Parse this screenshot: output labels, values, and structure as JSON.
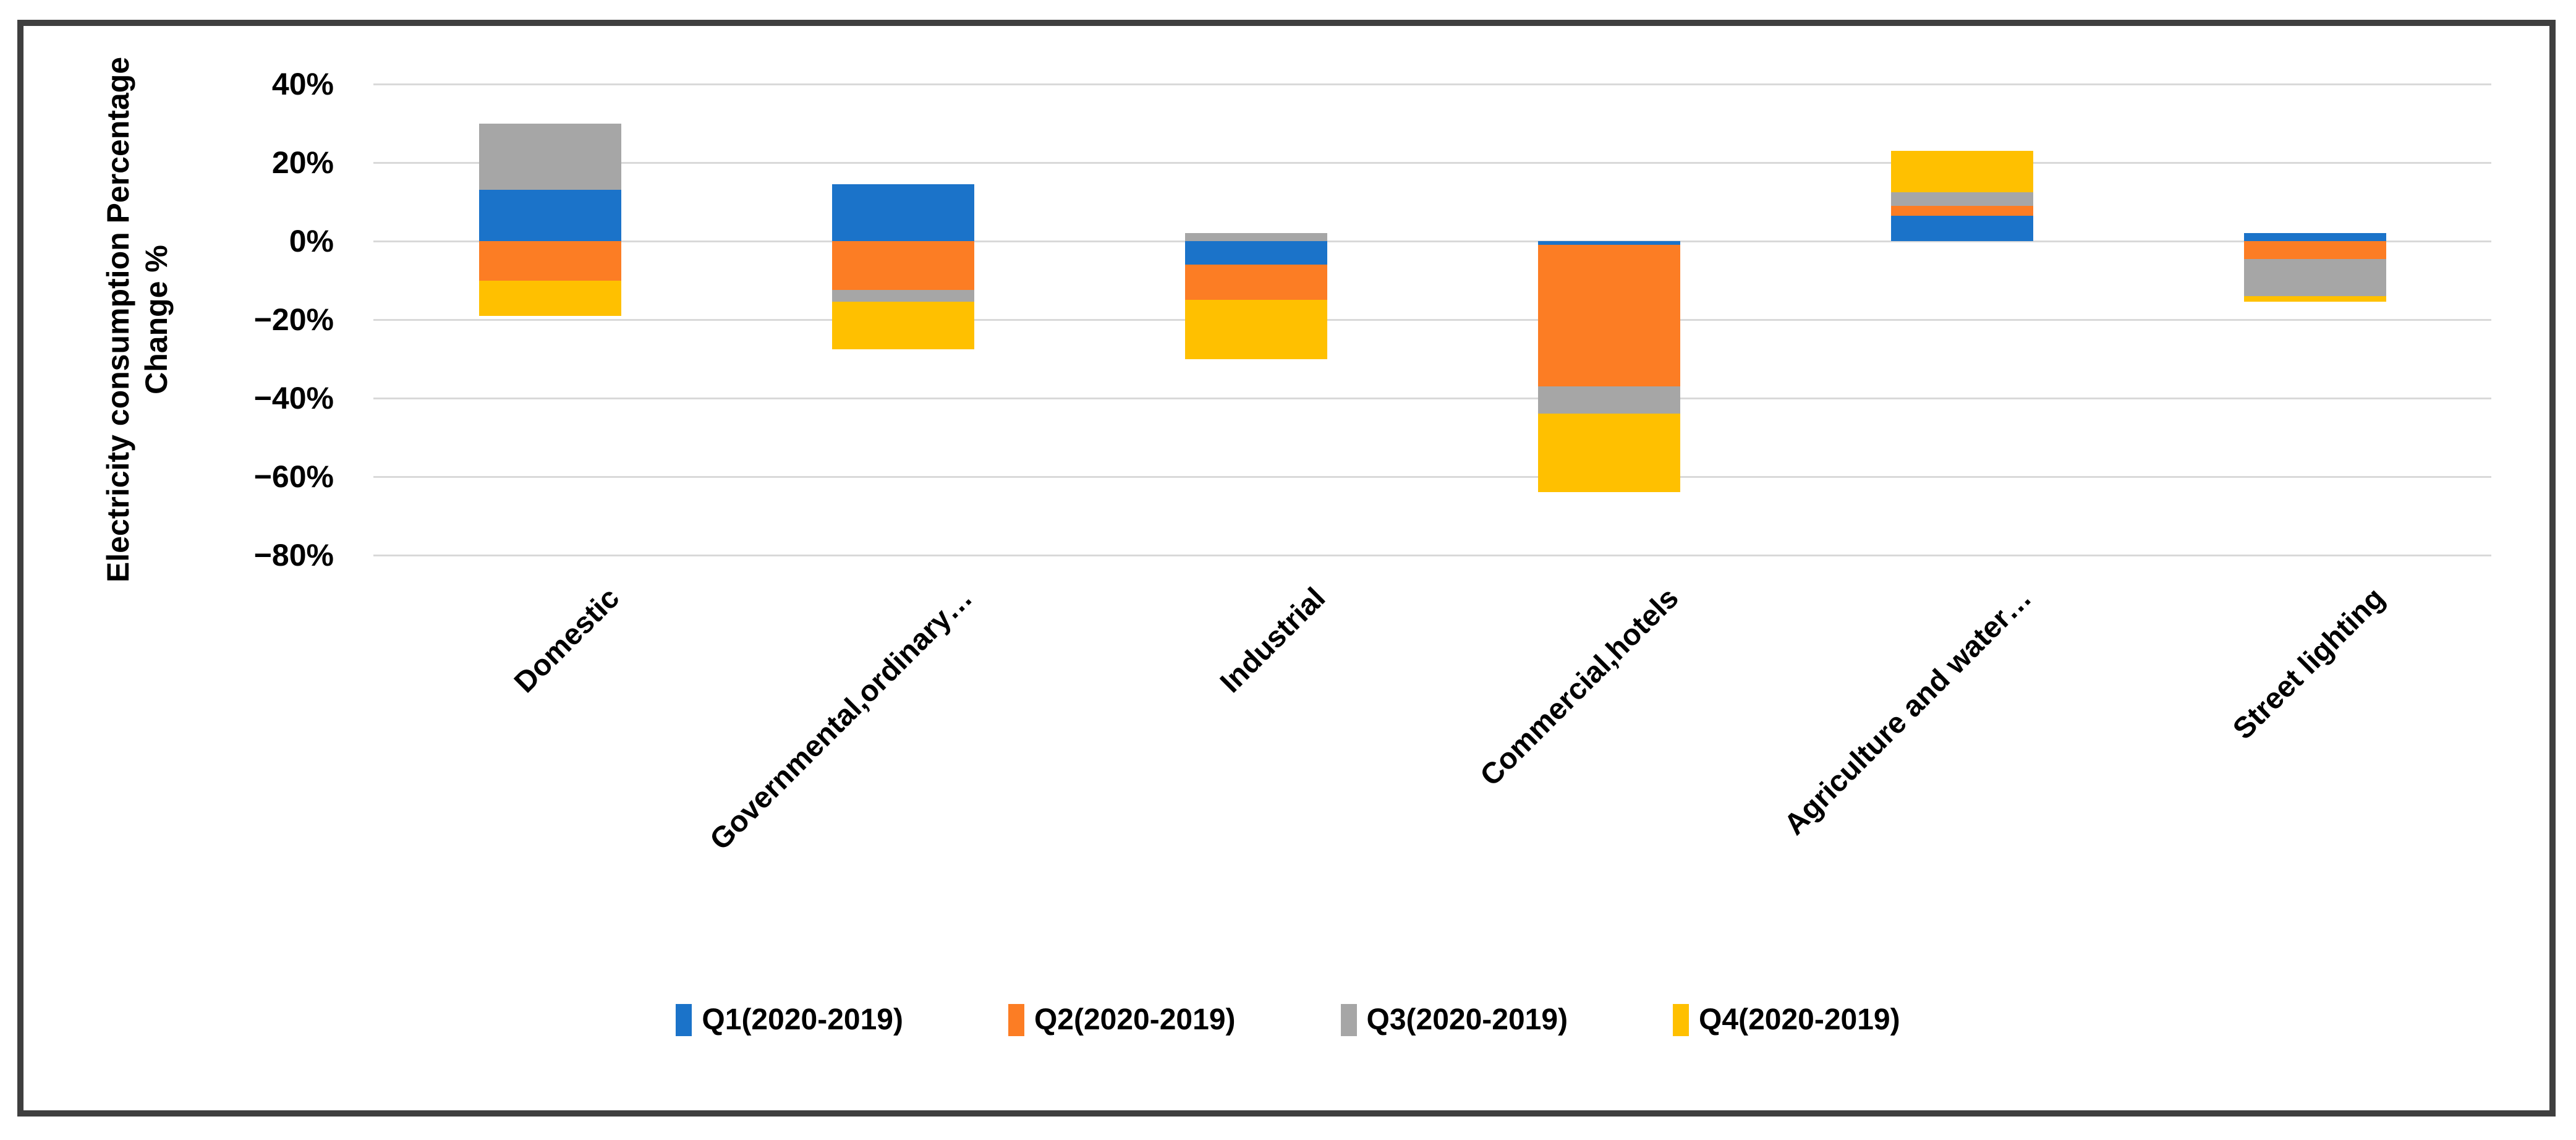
{
  "figure": {
    "background_color": "#ffffff",
    "border_color": "#3f3f3f",
    "gridline_color": "#d9d9d9"
  },
  "chart_data": {
    "type": "bar",
    "stacked": true,
    "title": "",
    "ylabel_lines": [
      "Electricity consumption Percentage",
      "Change %"
    ],
    "xlabel": "",
    "ylim": [
      -80,
      40
    ],
    "grid": true,
    "legend_position": "bottom",
    "y_ticks": [
      {
        "value": 40,
        "label": "40%"
      },
      {
        "value": 20,
        "label": "20%"
      },
      {
        "value": 0,
        "label": "0%"
      },
      {
        "value": -20,
        "label": "−20%"
      },
      {
        "value": -40,
        "label": "−40%"
      },
      {
        "value": -60,
        "label": "−60%"
      },
      {
        "value": -80,
        "label": "−80%"
      }
    ],
    "categories": [
      "Domestic",
      "Governmental,ordinary…",
      "Industrial",
      "Commercial,hotels",
      "Agriculture and water…",
      "Street lighting"
    ],
    "series": [
      {
        "name": "Q1(2020-2019)",
        "color": "#1b73c9",
        "values": [
          13,
          14.5,
          -6,
          -1,
          6.5,
          2
        ]
      },
      {
        "name": "Q2(2020-2019)",
        "color": "#fc7d24",
        "values": [
          -10,
          -12.5,
          -9,
          -36,
          2.5,
          -4.5
        ]
      },
      {
        "name": "Q3(2020-2019)",
        "color": "#a6a6a6",
        "values": [
          17,
          -3,
          2,
          -7,
          3.5,
          -9.5
        ]
      },
      {
        "name": "Q4(2020-2019)",
        "color": "#ffc000",
        "values": [
          -9,
          -12,
          -15,
          -20,
          10.5,
          -1.5
        ]
      }
    ]
  }
}
